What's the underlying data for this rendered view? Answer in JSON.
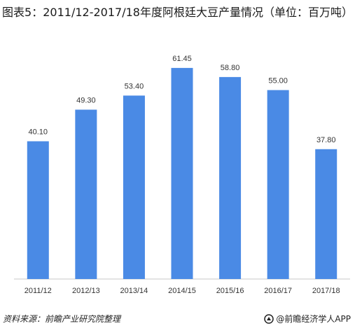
{
  "title": "图表5：2011/12-2017/18年度阿根廷大豆产量情况（单位：百万吨）",
  "source": "资料来源：前瞻产业研究院整理",
  "brand": "@前瞻经济学人APP",
  "colors": {
    "bar": "#4a8ae5",
    "axis": "#c9c9c9",
    "text": "#333333"
  },
  "chart_data": {
    "type": "bar",
    "categories": [
      "2011/12",
      "2012/13",
      "2013/14",
      "2014/15",
      "2015/16",
      "2016/17",
      "2017/18"
    ],
    "values": [
      40.1,
      49.3,
      53.4,
      61.45,
      58.8,
      55.0,
      37.8
    ],
    "value_labels": [
      "40.10",
      "49.30",
      "53.40",
      "61.45",
      "58.80",
      "55.00",
      "37.80"
    ],
    "ylim": [
      0,
      70
    ],
    "grid": false,
    "legend": "none"
  }
}
